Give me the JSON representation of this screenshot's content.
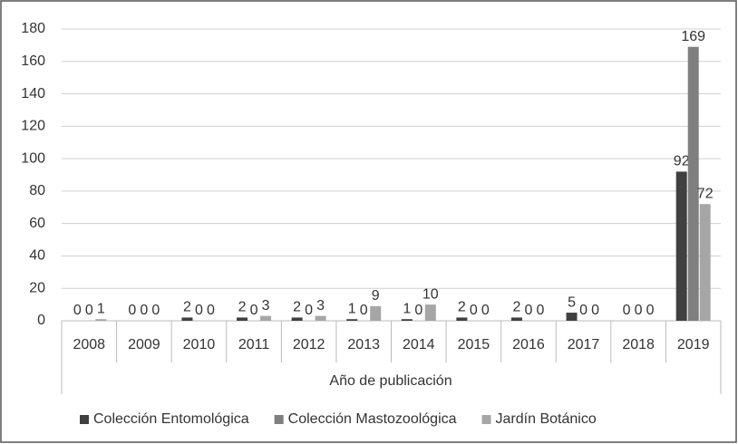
{
  "chart_data": {
    "type": "bar",
    "xlabel": "Año de publicación",
    "categories": [
      "2008",
      "2009",
      "2010",
      "2011",
      "2012",
      "2013",
      "2014",
      "2015",
      "2016",
      "2017",
      "2018",
      "2019"
    ],
    "series": [
      {
        "name": "Colección Entomológica",
        "color": "#404040",
        "values": [
          0,
          0,
          2,
          2,
          2,
          1,
          1,
          2,
          2,
          5,
          0,
          92
        ]
      },
      {
        "name": "Colección Mastozoológica",
        "color": "#7f7f7f",
        "values": [
          0,
          0,
          0,
          0,
          0,
          0,
          0,
          0,
          0,
          0,
          0,
          169
        ]
      },
      {
        "name": "Jardín Botánico",
        "color": "#a6a6a6",
        "values": [
          1,
          0,
          0,
          3,
          3,
          9,
          10,
          0,
          0,
          0,
          0,
          72
        ]
      }
    ],
    "ylim": [
      0,
      180
    ],
    "yticks": [
      0,
      20,
      40,
      60,
      80,
      100,
      120,
      140,
      160,
      180
    ],
    "grid": true,
    "legend": "bottom"
  }
}
